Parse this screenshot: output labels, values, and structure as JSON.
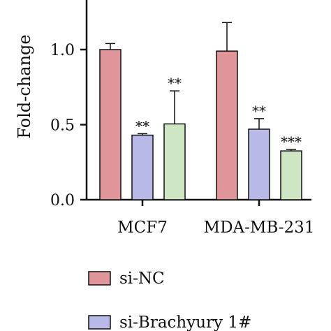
{
  "chart_data": {
    "type": "bar",
    "ylabel": "Fold-change",
    "ylim": [
      0,
      1.25
    ],
    "yticks": [
      "0.0",
      "0.5",
      "1.0"
    ],
    "ytick_values": [
      0,
      0.5,
      1.0
    ],
    "categories": [
      "MCF7",
      "MDA-MB-231"
    ],
    "series": [
      {
        "name": "si-NC",
        "color": "#e0959a",
        "values": [
          1.0,
          0.99
        ],
        "errors": [
          0.04,
          0.19
        ],
        "sig": [
          "",
          ""
        ]
      },
      {
        "name": "si-Brachyury 1#",
        "color": "#b9b9e8",
        "values": [
          0.43,
          0.47
        ],
        "errors": [
          0.01,
          0.07
        ],
        "sig": [
          "**",
          "**"
        ]
      },
      {
        "name": "",
        "color": "#cfe6c4",
        "values": [
          0.505,
          0.325
        ],
        "errors": [
          0.22,
          0.01
        ],
        "sig": [
          "**",
          "***"
        ]
      }
    ],
    "legend_position": "bottom"
  }
}
